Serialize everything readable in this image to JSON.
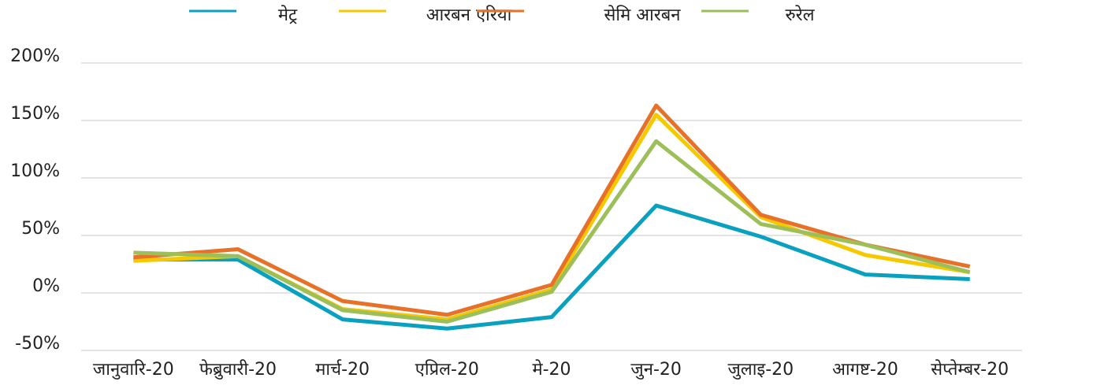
{
  "chart_data": {
    "type": "line",
    "categories": [
      "जानुवारि-20",
      "फेब्रुवारी-20",
      "मार्च-20",
      "एप्रिल-20",
      "मे-20",
      "जुन-20",
      "जुलाइ-20",
      "आगष्ट-20",
      "सेप्तेम्बर-20"
    ],
    "series": [
      {
        "name": "मेट्र",
        "color": "#0aa0c0",
        "values": [
          29,
          29,
          -23,
          -31,
          -21,
          76,
          49,
          16,
          12
        ]
      },
      {
        "name": "आरबन एरिया",
        "color": "#f5c800",
        "values": [
          28,
          32,
          -14,
          -23,
          3,
          155,
          66,
          33,
          18
        ]
      },
      {
        "name": "सेमि आरबन",
        "color": "#e8712a",
        "values": [
          31,
          38,
          -7,
          -19,
          7,
          163,
          68,
          42,
          23
        ]
      },
      {
        "name": "रुरेल",
        "color": "#9dbf5a",
        "values": [
          35,
          32,
          -15,
          -25,
          1,
          132,
          60,
          42,
          18
        ]
      }
    ],
    "ylim": [
      -50,
      200
    ],
    "yticks": [
      {
        "value": -50,
        "label": "-50%"
      },
      {
        "value": 0,
        "label": "0%"
      },
      {
        "value": 50,
        "label": "50%"
      },
      {
        "value": 100,
        "label": "100%"
      },
      {
        "value": 150,
        "label": "150%"
      },
      {
        "value": 200,
        "label": "200%"
      }
    ],
    "grid": true,
    "legend": "top"
  }
}
